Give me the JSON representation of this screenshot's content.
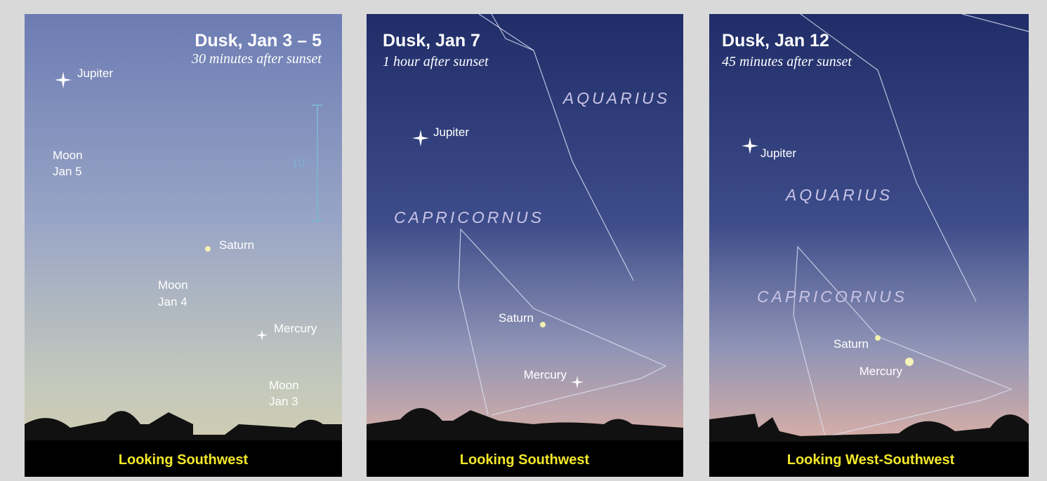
{
  "panels": [
    {
      "title": "Dusk, Jan 3 – 5",
      "subtitle": "30 minutes after sunset",
      "labels": [
        "Jupiter",
        "Moon",
        "Jan 5",
        "10°",
        "Saturn",
        "Moon",
        "Jan 4",
        "Mercury",
        "Moon",
        "Jan 3"
      ],
      "footer": "Looking Southwest"
    },
    {
      "title": "Dusk, Jan 7",
      "subtitle": "1 hour after sunset",
      "labels": [
        "AQUARIUS",
        "Jupiter",
        "CAPRICORNUS",
        "Saturn",
        "Mercury"
      ],
      "footer": "Looking Southwest"
    },
    {
      "title": "Dusk, Jan 12",
      "subtitle": "45 minutes after sunset",
      "labels": [
        "Jupiter",
        "AQUARIUS",
        "CAPRICORNUS",
        "Saturn",
        "Mercury"
      ],
      "footer": "Looking West-Southwest"
    }
  ]
}
